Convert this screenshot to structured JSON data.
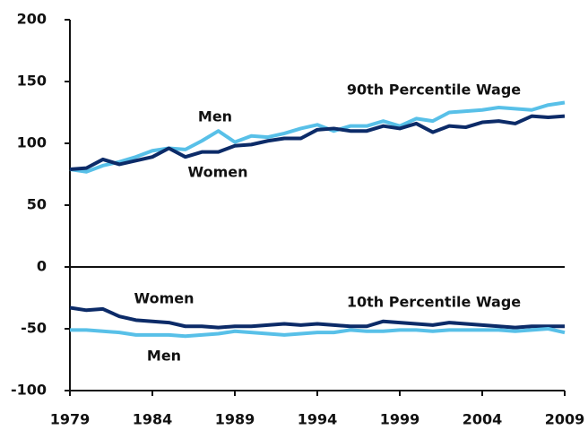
{
  "chart_data": {
    "type": "line",
    "x": [
      1979,
      1980,
      1981,
      1982,
      1983,
      1984,
      1985,
      1986,
      1987,
      1988,
      1989,
      1990,
      1991,
      1992,
      1993,
      1994,
      1995,
      1996,
      1997,
      1998,
      1999,
      2000,
      2001,
      2002,
      2003,
      2004,
      2005,
      2006,
      2007,
      2008,
      2009
    ],
    "series": [
      {
        "color": "#58c0e8",
        "values": [
          79,
          77,
          82,
          85,
          89,
          94,
          96,
          95,
          102,
          110,
          101,
          106,
          105,
          108,
          112,
          115,
          110,
          114,
          114,
          118,
          114,
          120,
          118,
          125,
          126,
          127,
          129,
          128,
          127,
          131,
          133
        ]
      },
      {
        "color": "#0c2b68",
        "values": [
          79,
          80,
          87,
          83,
          86,
          89,
          96,
          89,
          93,
          93,
          98,
          99,
          102,
          104,
          104,
          111,
          112,
          110,
          110,
          114,
          112,
          116,
          109,
          114,
          113,
          117,
          118,
          116,
          122,
          121,
          122
        ]
      },
      {
        "color": "#0c2b68",
        "values": [
          -33,
          -35,
          -34,
          -40,
          -43,
          -44,
          -45,
          -48,
          -48,
          -49,
          -48,
          -48,
          -47,
          -46,
          -47,
          -46,
          -47,
          -48,
          -48,
          -44,
          -45,
          -46,
          -47,
          -45,
          -46,
          -47,
          -48,
          -49,
          -48,
          -48,
          -48
        ]
      },
      {
        "color": "#58c0e8",
        "values": [
          -51,
          -51,
          -52,
          -53,
          -55,
          -55,
          -55,
          -56,
          -55,
          -54,
          -52,
          -53,
          -54,
          -55,
          -54,
          -53,
          -53,
          -51,
          -52,
          -52,
          -51,
          -51,
          -52,
          -51,
          -51,
          -51,
          -51,
          -52,
          -51,
          -50,
          -53
        ]
      }
    ],
    "annotations": [
      "Men",
      "Women",
      "90th Percentile Wage",
      "10th Percentile Wage",
      "Women",
      "Men"
    ],
    "xlim": [
      1979,
      2009
    ],
    "xticks": [
      1979,
      1984,
      1989,
      1994,
      1999,
      2004,
      2009
    ],
    "ylim": [
      -100,
      200
    ],
    "yticks": [
      -100,
      -50,
      0,
      50,
      100,
      150,
      200
    ]
  }
}
